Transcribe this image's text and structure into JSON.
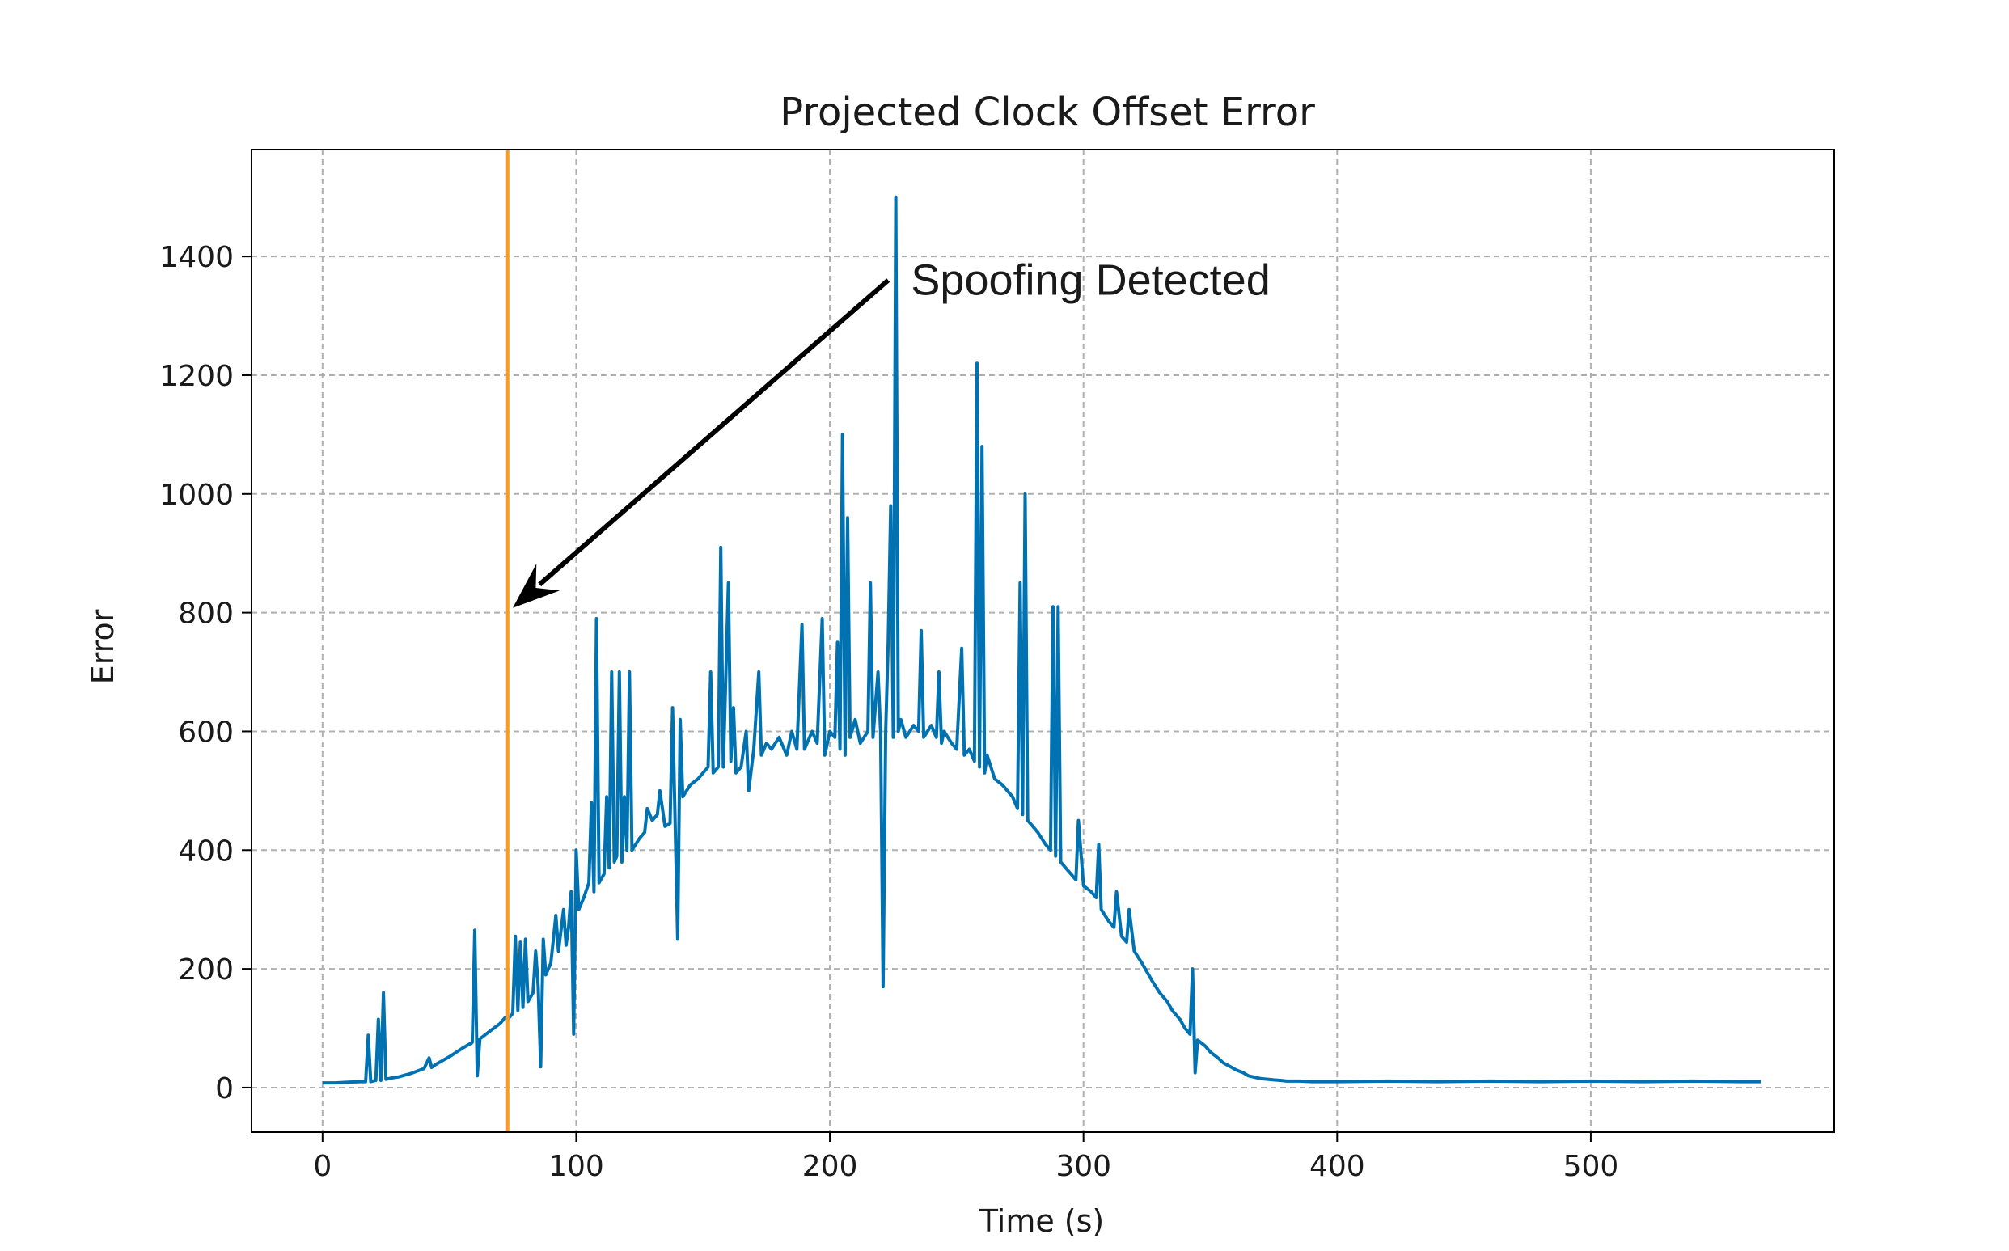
{
  "chart_data": {
    "type": "line",
    "title": "Projected Clock Offset Error",
    "xlabel": "Time (s)",
    "ylabel": "Error",
    "xlim": [
      -28,
      596
    ],
    "ylim": [
      -75,
      1580
    ],
    "x_ticks": [
      0,
      100,
      200,
      300,
      400,
      500
    ],
    "y_ticks": [
      0,
      200,
      400,
      600,
      800,
      1000,
      1200,
      1400
    ],
    "grid": true,
    "grid_style": "dashed",
    "series": [
      {
        "color": "#0072b2",
        "points": [
          [
            0,
            8
          ],
          [
            5,
            8
          ],
          [
            10,
            9
          ],
          [
            15,
            10
          ],
          [
            17,
            10
          ],
          [
            18,
            88
          ],
          [
            19,
            10
          ],
          [
            21,
            12
          ],
          [
            22,
            115
          ],
          [
            23,
            12
          ],
          [
            24,
            160
          ],
          [
            25,
            14
          ],
          [
            27,
            16
          ],
          [
            30,
            18
          ],
          [
            35,
            24
          ],
          [
            40,
            32
          ],
          [
            42,
            50
          ],
          [
            43,
            34
          ],
          [
            45,
            40
          ],
          [
            50,
            52
          ],
          [
            55,
            66
          ],
          [
            59,
            76
          ],
          [
            60,
            265
          ],
          [
            61,
            20
          ],
          [
            62,
            82
          ],
          [
            65,
            92
          ],
          [
            70,
            108
          ],
          [
            72,
            118
          ],
          [
            73,
            115
          ],
          [
            75,
            125
          ],
          [
            76,
            255
          ],
          [
            77,
            130
          ],
          [
            78,
            245
          ],
          [
            79,
            135
          ],
          [
            80,
            250
          ],
          [
            81,
            145
          ],
          [
            83,
            160
          ],
          [
            84,
            230
          ],
          [
            85,
            170
          ],
          [
            86,
            35
          ],
          [
            87,
            250
          ],
          [
            88,
            190
          ],
          [
            90,
            210
          ],
          [
            92,
            290
          ],
          [
            93,
            230
          ],
          [
            95,
            300
          ],
          [
            96,
            240
          ],
          [
            97,
            270
          ],
          [
            98,
            330
          ],
          [
            99,
            90
          ],
          [
            100,
            400
          ],
          [
            101,
            300
          ],
          [
            103,
            320
          ],
          [
            105,
            345
          ],
          [
            106,
            480
          ],
          [
            107,
            330
          ],
          [
            108,
            790
          ],
          [
            109,
            345
          ],
          [
            111,
            360
          ],
          [
            112,
            490
          ],
          [
            113,
            370
          ],
          [
            114,
            700
          ],
          [
            115,
            380
          ],
          [
            116,
            390
          ],
          [
            117,
            700
          ],
          [
            118,
            380
          ],
          [
            119,
            490
          ],
          [
            120,
            400
          ],
          [
            121,
            700
          ],
          [
            122,
            400
          ],
          [
            125,
            420
          ],
          [
            127,
            430
          ],
          [
            128,
            470
          ],
          [
            130,
            450
          ],
          [
            132,
            460
          ],
          [
            133,
            500
          ],
          [
            135,
            440
          ],
          [
            137,
            445
          ],
          [
            138,
            640
          ],
          [
            139,
            450
          ],
          [
            140,
            250
          ],
          [
            141,
            620
          ],
          [
            142,
            490
          ],
          [
            145,
            510
          ],
          [
            148,
            520
          ],
          [
            150,
            530
          ],
          [
            152,
            540
          ],
          [
            153,
            700
          ],
          [
            154,
            530
          ],
          [
            156,
            540
          ],
          [
            157,
            910
          ],
          [
            158,
            540
          ],
          [
            160,
            850
          ],
          [
            161,
            550
          ],
          [
            162,
            640
          ],
          [
            163,
            530
          ],
          [
            165,
            540
          ],
          [
            167,
            600
          ],
          [
            168,
            500
          ],
          [
            170,
            570
          ],
          [
            172,
            700
          ],
          [
            173,
            560
          ],
          [
            175,
            580
          ],
          [
            177,
            570
          ],
          [
            180,
            590
          ],
          [
            183,
            560
          ],
          [
            185,
            600
          ],
          [
            187,
            570
          ],
          [
            189,
            780
          ],
          [
            190,
            570
          ],
          [
            193,
            600
          ],
          [
            195,
            580
          ],
          [
            197,
            790
          ],
          [
            198,
            560
          ],
          [
            200,
            600
          ],
          [
            202,
            590
          ],
          [
            203,
            750
          ],
          [
            204,
            570
          ],
          [
            205,
            1100
          ],
          [
            206,
            560
          ],
          [
            207,
            960
          ],
          [
            208,
            590
          ],
          [
            210,
            620
          ],
          [
            212,
            580
          ],
          [
            215,
            600
          ],
          [
            216,
            850
          ],
          [
            217,
            590
          ],
          [
            219,
            700
          ],
          [
            220,
            600
          ],
          [
            221,
            170
          ],
          [
            222,
            600
          ],
          [
            223,
            750
          ],
          [
            224,
            980
          ],
          [
            225,
            590
          ],
          [
            226,
            1500
          ],
          [
            227,
            600
          ],
          [
            228,
            620
          ],
          [
            230,
            590
          ],
          [
            233,
            610
          ],
          [
            235,
            600
          ],
          [
            236,
            770
          ],
          [
            237,
            590
          ],
          [
            240,
            610
          ],
          [
            242,
            590
          ],
          [
            243,
            700
          ],
          [
            244,
            580
          ],
          [
            245,
            600
          ],
          [
            248,
            580
          ],
          [
            250,
            570
          ],
          [
            252,
            740
          ],
          [
            253,
            560
          ],
          [
            255,
            570
          ],
          [
            257,
            550
          ],
          [
            258,
            1220
          ],
          [
            259,
            540
          ],
          [
            260,
            1080
          ],
          [
            261,
            530
          ],
          [
            262,
            560
          ],
          [
            265,
            520
          ],
          [
            268,
            510
          ],
          [
            270,
            500
          ],
          [
            272,
            490
          ],
          [
            274,
            470
          ],
          [
            275,
            850
          ],
          [
            276,
            460
          ],
          [
            277,
            1000
          ],
          [
            278,
            450
          ],
          [
            280,
            440
          ],
          [
            282,
            430
          ],
          [
            285,
            410
          ],
          [
            287,
            400
          ],
          [
            288,
            810
          ],
          [
            289,
            390
          ],
          [
            290,
            810
          ],
          [
            291,
            380
          ],
          [
            293,
            370
          ],
          [
            295,
            360
          ],
          [
            297,
            350
          ],
          [
            298,
            450
          ],
          [
            300,
            340
          ],
          [
            303,
            330
          ],
          [
            305,
            320
          ],
          [
            306,
            410
          ],
          [
            307,
            300
          ],
          [
            310,
            280
          ],
          [
            312,
            270
          ],
          [
            313,
            330
          ],
          [
            315,
            255
          ],
          [
            317,
            245
          ],
          [
            318,
            300
          ],
          [
            320,
            230
          ],
          [
            323,
            210
          ],
          [
            325,
            195
          ],
          [
            327,
            180
          ],
          [
            330,
            160
          ],
          [
            333,
            145
          ],
          [
            335,
            130
          ],
          [
            338,
            115
          ],
          [
            340,
            100
          ],
          [
            342,
            90
          ],
          [
            343,
            200
          ],
          [
            344,
            25
          ],
          [
            345,
            80
          ],
          [
            348,
            70
          ],
          [
            350,
            60
          ],
          [
            353,
            50
          ],
          [
            355,
            42
          ],
          [
            358,
            35
          ],
          [
            360,
            30
          ],
          [
            363,
            25
          ],
          [
            365,
            20
          ],
          [
            368,
            17
          ],
          [
            370,
            15
          ],
          [
            373,
            14
          ],
          [
            375,
            13
          ],
          [
            378,
            12
          ],
          [
            380,
            11
          ],
          [
            385,
            11
          ],
          [
            390,
            10
          ],
          [
            400,
            10
          ],
          [
            420,
            11
          ],
          [
            440,
            10
          ],
          [
            460,
            11
          ],
          [
            480,
            10
          ],
          [
            500,
            11
          ],
          [
            520,
            10
          ],
          [
            540,
            11
          ],
          [
            560,
            10
          ],
          [
            567,
            10
          ]
        ]
      }
    ],
    "vline": {
      "x": 73,
      "color": "#ff9a1f"
    },
    "annotation": {
      "text": "Spoofing Detected",
      "text_x": 232,
      "text_y": 1360,
      "arrow_from": [
        223,
        1360
      ],
      "arrow_to": [
        75,
        808
      ]
    }
  }
}
